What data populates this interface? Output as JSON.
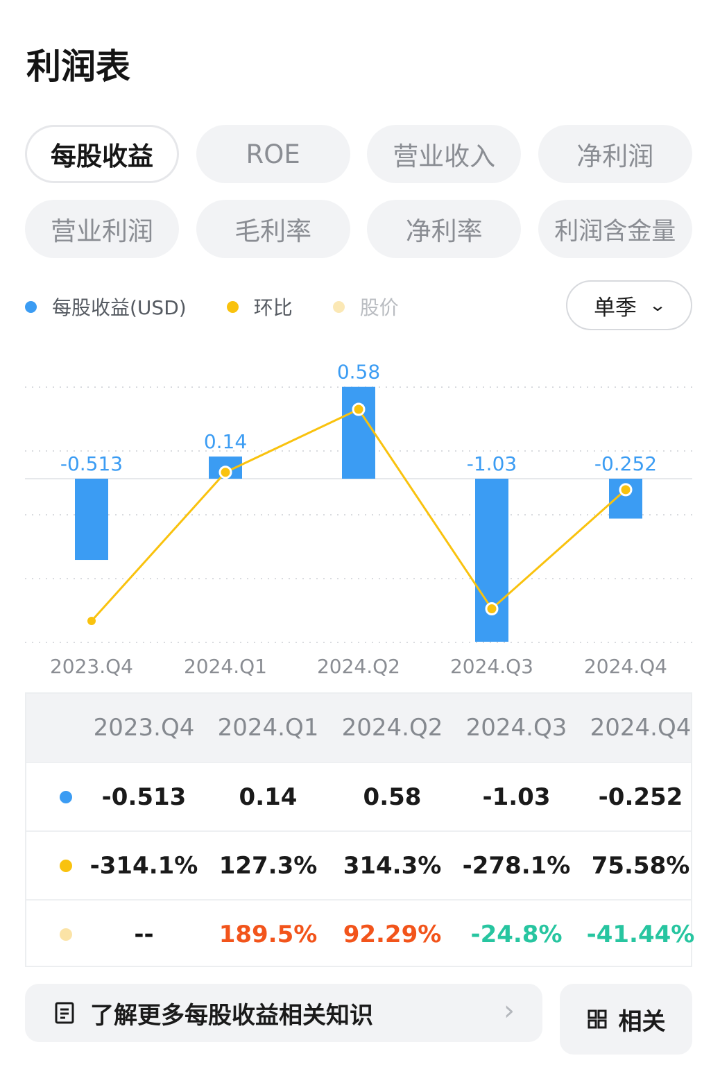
{
  "title": "利润表",
  "tabs": [
    {
      "label": "每股收益",
      "active": true
    },
    {
      "label": "ROE",
      "active": false
    },
    {
      "label": "营业收入",
      "active": false
    },
    {
      "label": "净利润",
      "active": false
    },
    {
      "label": "营业利润",
      "active": false
    },
    {
      "label": "毛利率",
      "active": false
    },
    {
      "label": "净利率",
      "active": false
    },
    {
      "label": "利润含金量",
      "active": false
    }
  ],
  "legend": [
    {
      "label": "每股收益(USD)",
      "color": "#3b9cf3"
    },
    {
      "label": "环比",
      "color": "#f9c20e"
    },
    {
      "label": "股价",
      "color": "#fbe8b5"
    }
  ],
  "period_select": {
    "label": "单季",
    "icon": "chevron-down-icon"
  },
  "chart_data": {
    "type": "bar",
    "categories": [
      "2023.Q4",
      "2024.Q1",
      "2024.Q2",
      "2024.Q3",
      "2024.Q4"
    ],
    "series": [
      {
        "name": "每股收益(USD)",
        "type": "bar",
        "color": "#3b9cf3",
        "values": [
          -0.513,
          0.14,
          0.58,
          -1.03,
          -0.252
        ]
      },
      {
        "name": "环比",
        "type": "line",
        "color": "#f9c20e",
        "values": [
          -314.1,
          127.3,
          314.3,
          -278.1,
          75.58
        ]
      }
    ],
    "value_labels": [
      "-0.513",
      "0.14",
      "0.58",
      "-1.03",
      "-0.252"
    ],
    "grid": true
  },
  "table": {
    "headers": [
      "2023.Q4",
      "2024.Q1",
      "2024.Q2",
      "2024.Q3",
      "2024.Q4"
    ],
    "rows": [
      {
        "dot_color": "#3b9cf3",
        "values": [
          "-0.513",
          "0.14",
          "0.58",
          "-1.03",
          "-0.252"
        ],
        "colors": [
          "#111111",
          "#111111",
          "#111111",
          "#111111",
          "#111111"
        ]
      },
      {
        "dot_color": "#f9c20e",
        "values": [
          "-314.1%",
          "127.3%",
          "314.3%",
          "-278.1%",
          "75.58%"
        ],
        "colors": [
          "#111111",
          "#111111",
          "#111111",
          "#111111",
          "#111111"
        ]
      },
      {
        "dot_color": "#fbe3a6",
        "values": [
          "--",
          "189.5%",
          "92.29%",
          "-24.8%",
          "-41.44%"
        ],
        "colors": [
          "#111111",
          "#f2541b",
          "#f2541b",
          "#27c5a0",
          "#27c5a0"
        ]
      }
    ]
  },
  "learn_more": {
    "label": "了解更多每股收益相关知识",
    "icon": "document-icon"
  },
  "related": {
    "label": "相关",
    "icon": "grid-icon"
  }
}
